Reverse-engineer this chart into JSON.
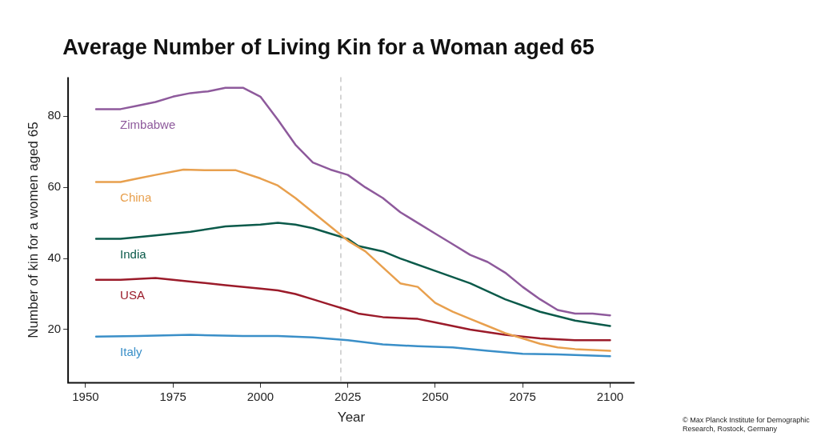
{
  "chart_data": {
    "type": "line",
    "title": "Average Number of Living Kin for a Woman aged 65",
    "xlabel": "Year",
    "ylabel": "Number of kin for a women aged 65",
    "annotations": [
      "© Max Planck Institute for Demographic Research, Rostock, Germany"
    ],
    "xlim": [
      1945,
      2107
    ],
    "xticks": [
      1950,
      1975,
      2000,
      2025,
      2050,
      2075,
      2100
    ],
    "ylim": [
      5,
      91
    ],
    "yticks": [
      20,
      40,
      60,
      80
    ],
    "grid": false,
    "legend": false,
    "marker": "none",
    "line_style": "solid",
    "ref_lines": [
      {
        "axis": "x",
        "value": 2023,
        "color": "#c8c8c8",
        "line_style": "dashed"
      }
    ],
    "series": [
      {
        "name": "Zimbabwe",
        "color": "#8e5a9c",
        "x": [
          1953,
          1960,
          1965,
          1970,
          1975,
          1980,
          1985,
          1990,
          1995,
          2000,
          2005,
          2010,
          2015,
          2020,
          2025,
          2030,
          2035,
          2040,
          2045,
          2050,
          2055,
          2060,
          2065,
          2070,
          2075,
          2080,
          2085,
          2090,
          2095,
          2100
        ],
        "values": [
          82,
          82,
          83,
          84,
          85.5,
          86.5,
          87,
          88,
          88,
          85.5,
          79,
          72,
          67,
          65,
          63.5,
          60,
          57,
          53,
          50,
          47,
          44,
          41,
          39,
          36,
          32,
          28.5,
          25.5,
          24.5,
          24.5,
          24
        ]
      },
      {
        "name": "China",
        "color": "#e8a04e",
        "x": [
          1953,
          1960,
          1965,
          1970,
          1978,
          1985,
          1993,
          2000,
          2005,
          2010,
          2015,
          2020,
          2025,
          2030,
          2035,
          2040,
          2045,
          2050,
          2055,
          2060,
          2065,
          2070,
          2075,
          2080,
          2085,
          2090,
          2100
        ],
        "values": [
          61.5,
          61.5,
          62.5,
          63.5,
          65,
          64.8,
          64.8,
          62.5,
          60.5,
          57,
          53,
          49,
          45,
          42,
          37.5,
          33,
          32,
          27.5,
          25,
          23,
          21,
          19,
          17.5,
          16,
          15,
          14.5,
          14
        ]
      },
      {
        "name": "India",
        "color": "#0b5a4a",
        "x": [
          1953,
          1960,
          1970,
          1980,
          1990,
          2000,
          2005,
          2010,
          2015,
          2020,
          2025,
          2028,
          2035,
          2040,
          2050,
          2060,
          2070,
          2080,
          2090,
          2100
        ],
        "values": [
          45.5,
          45.5,
          46.5,
          47.5,
          49,
          49.5,
          50,
          49.5,
          48.5,
          47,
          45.5,
          43.5,
          42,
          40,
          36.5,
          33,
          28.5,
          25,
          22.5,
          21
        ]
      },
      {
        "name": "USA",
        "color": "#9b1b2a",
        "x": [
          1953,
          1960,
          1970,
          1980,
          1990,
          2000,
          2005,
          2010,
          2015,
          2020,
          2025,
          2028,
          2035,
          2045,
          2050,
          2060,
          2070,
          2080,
          2090,
          2100
        ],
        "values": [
          34,
          34,
          34.5,
          33.5,
          32.5,
          31.5,
          31,
          30,
          28.5,
          27,
          25.5,
          24.5,
          23.5,
          23,
          22,
          20,
          18.5,
          17.5,
          17,
          17
        ]
      },
      {
        "name": "Italy",
        "color": "#3a8fc8",
        "x": [
          1953,
          1965,
          1980,
          1995,
          2005,
          2015,
          2025,
          2035,
          2045,
          2055,
          2065,
          2075,
          2085,
          2100
        ],
        "values": [
          18,
          18.2,
          18.5,
          18.2,
          18.2,
          17.8,
          17,
          15.8,
          15.3,
          15,
          14,
          13.2,
          13,
          12.5
        ]
      }
    ]
  }
}
